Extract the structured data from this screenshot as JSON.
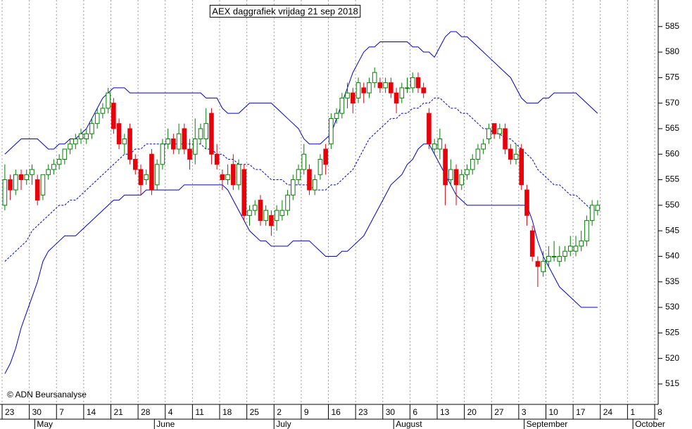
{
  "chart_data": {
    "type": "candlestick",
    "title": "AEX daggrafiek vrijdag 21 sep 2018",
    "source": "© ADN Beursanalyse",
    "up_color": "#008000",
    "down_color": "#e8000b",
    "ylim": [
      511,
      590.2
    ],
    "yticks": [
      515,
      520,
      525,
      530,
      535,
      540,
      545,
      550,
      555,
      560,
      565,
      570,
      575,
      580,
      585
    ],
    "grid": true,
    "categories": [
      "23",
      null,
      null,
      null,
      null,
      "30",
      null,
      null,
      null,
      null,
      "7",
      null,
      null,
      null,
      null,
      "14",
      null,
      null,
      null,
      null,
      "21",
      null,
      null,
      null,
      null,
      "28",
      null,
      null,
      null,
      null,
      "4",
      null,
      null,
      null,
      null,
      "11",
      null,
      null,
      null,
      null,
      "18",
      null,
      null,
      null,
      null,
      "25",
      null,
      null,
      null,
      null,
      "2",
      null,
      null,
      null,
      null,
      "9",
      null,
      null,
      null,
      null,
      "16",
      null,
      null,
      null,
      null,
      "23",
      null,
      null,
      null,
      null,
      "30",
      null,
      null,
      null,
      null,
      "6",
      null,
      null,
      null,
      null,
      "13",
      null,
      null,
      null,
      null,
      "20",
      null,
      null,
      null,
      null,
      "27",
      null,
      null,
      null,
      null,
      "3",
      null,
      null,
      null,
      null,
      "10",
      null,
      null,
      null,
      null,
      "17",
      null,
      null,
      null,
      null,
      "24",
      null,
      null,
      null,
      null,
      "1",
      null,
      null,
      null,
      null,
      "8"
    ],
    "months": [
      null,
      null,
      null,
      null,
      null,
      null,
      "May",
      null,
      null,
      null,
      null,
      null,
      null,
      null,
      null,
      null,
      null,
      null,
      null,
      null,
      null,
      null,
      null,
      null,
      null,
      null,
      null,
      null,
      "June",
      null,
      null,
      null,
      null,
      null,
      null,
      null,
      null,
      null,
      null,
      null,
      null,
      null,
      null,
      null,
      null,
      null,
      null,
      null,
      null,
      null,
      "July",
      null,
      null,
      null,
      null,
      null,
      null,
      null,
      null,
      null,
      null,
      null,
      null,
      null,
      null,
      null,
      null,
      null,
      null,
      null,
      null,
      null,
      "August",
      null,
      null,
      null,
      null,
      null,
      null,
      null,
      null,
      null,
      null,
      null,
      null,
      null,
      null,
      null,
      null,
      null,
      null,
      null,
      null,
      null,
      null,
      null,
      "September",
      null,
      null,
      null,
      null,
      null,
      null,
      null,
      null,
      null,
      null,
      null,
      null,
      null,
      null,
      null,
      null,
      null,
      null,
      null,
      "October",
      null,
      null,
      null,
      null,
      null
    ],
    "open": [
      550,
      555,
      553,
      556,
      555,
      556,
      555,
      552,
      556,
      557,
      558,
      559,
      561,
      562,
      563,
      563,
      564,
      566,
      568,
      569,
      570,
      566,
      562,
      565,
      559,
      557,
      555,
      560,
      554,
      558,
      562,
      563,
      561,
      565,
      561,
      560,
      563,
      563,
      568,
      560,
      556,
      555,
      558,
      554,
      557,
      548,
      549,
      551,
      547,
      548,
      547,
      548,
      549,
      552,
      555,
      557,
      557,
      553,
      556,
      561,
      562,
      567,
      568,
      571,
      572,
      571,
      573,
      572,
      574,
      574,
      573,
      574,
      572,
      571,
      573,
      573,
      575,
      573,
      568,
      561,
      561,
      561,
      555,
      557,
      554,
      556,
      557,
      559,
      561,
      563,
      566,
      564,
      565,
      561,
      559,
      561,
      553,
      545,
      539,
      537,
      539,
      540,
      539,
      540,
      541,
      541,
      542,
      543,
      547,
      549,
      null,
      null,
      null,
      null,
      null,
      null,
      null,
      null,
      null,
      null,
      null
    ],
    "high": [
      558,
      556,
      557,
      557,
      557,
      558,
      556,
      556,
      558,
      559,
      560,
      561,
      563,
      564,
      565,
      565,
      567,
      569,
      570,
      573,
      571,
      567,
      564,
      566,
      560,
      558,
      557,
      561,
      559,
      563,
      565,
      564,
      566,
      566,
      563,
      567,
      566,
      569,
      569,
      562,
      557,
      558,
      560,
      559,
      558,
      550,
      551,
      552,
      550,
      549,
      550,
      551,
      553,
      556,
      558,
      562,
      558,
      556,
      560,
      562,
      568,
      569,
      572,
      574,
      573,
      575,
      574,
      575,
      577,
      575,
      575,
      575,
      573,
      574,
      575,
      576,
      576,
      574,
      569,
      563,
      565,
      562,
      559,
      558,
      557,
      558,
      560,
      562,
      563,
      566,
      566,
      566,
      566,
      562,
      562,
      562,
      554,
      546,
      540,
      541,
      542,
      543,
      542,
      542,
      544,
      544,
      545,
      548,
      551,
      551,
      null,
      null,
      null,
      null,
      null,
      null,
      null,
      null,
      null,
      null,
      null
    ],
    "low": [
      549,
      551,
      552,
      553,
      554,
      554,
      550,
      551,
      555,
      556,
      557,
      558,
      560,
      561,
      562,
      562,
      563,
      565,
      567,
      568,
      564,
      561,
      560,
      558,
      556,
      552,
      554,
      552,
      553,
      557,
      561,
      560,
      560,
      560,
      557,
      558,
      562,
      561,
      558,
      557,
      553,
      554,
      553,
      553,
      547,
      546,
      548,
      546,
      546,
      544,
      545,
      547,
      548,
      551,
      554,
      556,
      552,
      552,
      555,
      556,
      561,
      566,
      567,
      569,
      568,
      570,
      570,
      571,
      573,
      572,
      572,
      571,
      568,
      570,
      572,
      572,
      572,
      571,
      561,
      560,
      559,
      550,
      554,
      550,
      553,
      555,
      556,
      558,
      560,
      562,
      563,
      563,
      560,
      558,
      558,
      553,
      546,
      539,
      534,
      536,
      538,
      539,
      538,
      539,
      540,
      540,
      541,
      542,
      546,
      548,
      null,
      null,
      null,
      null,
      null,
      null,
      null,
      null,
      null,
      null,
      null
    ],
    "close": [
      555,
      553,
      556,
      555,
      556,
      557,
      551,
      556,
      557,
      558,
      559,
      561,
      562,
      563,
      564,
      564,
      566,
      568,
      569,
      572,
      565,
      562,
      563,
      559,
      557,
      554,
      556,
      553,
      558,
      562,
      563,
      561,
      564,
      561,
      559,
      563,
      565,
      566,
      560,
      558,
      555,
      556,
      554,
      558,
      548,
      549,
      550,
      547,
      549,
      546,
      549,
      549,
      552,
      555,
      557,
      560,
      553,
      555,
      559,
      558,
      567,
      568,
      571,
      572,
      570,
      574,
      572,
      574,
      576,
      573,
      574,
      572,
      570,
      573,
      573,
      575,
      573,
      572,
      562,
      562,
      563,
      554,
      557,
      554,
      556,
      557,
      559,
      561,
      562,
      565,
      564,
      565,
      561,
      559,
      560,
      554,
      548,
      540,
      538,
      539,
      540,
      540,
      540,
      541,
      542,
      542,
      543,
      547,
      550,
      550,
      null,
      null,
      null,
      null,
      null,
      null,
      null,
      null,
      null,
      null,
      null
    ],
    "lines": [
      {
        "color": "#0000cc",
        "dashed": false,
        "values": [
          560,
          561,
          562,
          563,
          563,
          563,
          563,
          562,
          561,
          561,
          562,
          562,
          563,
          563,
          564,
          565,
          567,
          569,
          571,
          572,
          573,
          573,
          573,
          572,
          572,
          572,
          572,
          572,
          572,
          572,
          572,
          572,
          572,
          572,
          572,
          572,
          572,
          571,
          571,
          571,
          569,
          568,
          568,
          568,
          569,
          570,
          570,
          570,
          570,
          570,
          569,
          568,
          567,
          566,
          565,
          563,
          562,
          562,
          562,
          563,
          564,
          567,
          570,
          573,
          576,
          578,
          580,
          581,
          581,
          582,
          582,
          582,
          582,
          582,
          582,
          581,
          581,
          580,
          580,
          579,
          581,
          583,
          584,
          584,
          583,
          583,
          582,
          581,
          580,
          579,
          578,
          577,
          576,
          575,
          573,
          571,
          570,
          570,
          570,
          571,
          571,
          572,
          572,
          572,
          572,
          572,
          571,
          570,
          569,
          568,
          null,
          null,
          null,
          null,
          null,
          null,
          null,
          null,
          null,
          null,
          null
        ]
      },
      {
        "color": "#0000cc",
        "dashed": true,
        "values": [
          539,
          540,
          541,
          542,
          543,
          545,
          546,
          547,
          548,
          549,
          550,
          550,
          551,
          551,
          552,
          553,
          554,
          555,
          556,
          557,
          558,
          559,
          560,
          560,
          561,
          561,
          562,
          562,
          562,
          562,
          562,
          562,
          562,
          562,
          562,
          562,
          562,
          561,
          561,
          560,
          560,
          559,
          559,
          558,
          558,
          558,
          557,
          557,
          556,
          555,
          555,
          555,
          554,
          554,
          554,
          554,
          554,
          553,
          553,
          553,
          554,
          554,
          555,
          556,
          557,
          559,
          561,
          563,
          564,
          565,
          566,
          567,
          567,
          568,
          568,
          569,
          569,
          570,
          570,
          571,
          571,
          570,
          569,
          569,
          568,
          568,
          567,
          566,
          565,
          565,
          564,
          564,
          563,
          563,
          562,
          561,
          560,
          559,
          557,
          556,
          555,
          554,
          554,
          553,
          552,
          552,
          551,
          550,
          549,
          549,
          null,
          null,
          null,
          null,
          null,
          null,
          null,
          null,
          null,
          null,
          null
        ]
      },
      {
        "color": "#0000cc",
        "dashed": false,
        "values": [
          517,
          519,
          522,
          526,
          529,
          532,
          535,
          539,
          541,
          542,
          543,
          544,
          544,
          544,
          545,
          546,
          547,
          548,
          549,
          550,
          551,
          551,
          552,
          552,
          552,
          552,
          553,
          553,
          553,
          553,
          553,
          553,
          553,
          554,
          554,
          554,
          554,
          554,
          554,
          554,
          554,
          553,
          551,
          549,
          547,
          545,
          544,
          543,
          543,
          542,
          542,
          542,
          542,
          543,
          543,
          543,
          543,
          542,
          541,
          540,
          540,
          540,
          541,
          541,
          542,
          543,
          544,
          546,
          548,
          550,
          552,
          554,
          555,
          556,
          558,
          559,
          561,
          562,
          562,
          560,
          558,
          556,
          554,
          552,
          551,
          550,
          550,
          550,
          550,
          550,
          550,
          550,
          550,
          550,
          550,
          550,
          550,
          547,
          543,
          540,
          538,
          536,
          534,
          533,
          532,
          531,
          530,
          530,
          530,
          530,
          null,
          null,
          null,
          null,
          null,
          null,
          null,
          null,
          null,
          null,
          null
        ]
      }
    ]
  }
}
